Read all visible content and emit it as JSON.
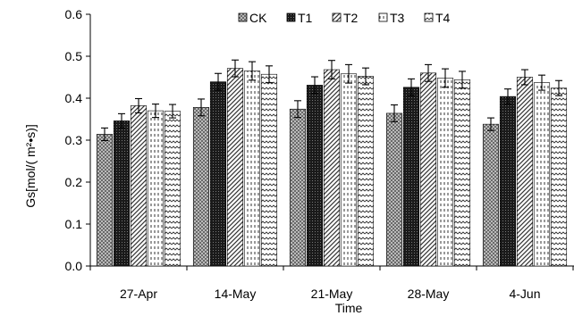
{
  "chart_data": {
    "type": "bar",
    "xlabel": "Time",
    "ylabel": "Gs[mol/( m²•s)]",
    "ylim": [
      0,
      0.6
    ],
    "yticks": [
      "0.0",
      "0.1",
      "0.2",
      "0.3",
      "0.4",
      "0.5",
      "0.6"
    ],
    "categories": [
      "27-Apr",
      "14-May",
      "21-May",
      "28-May",
      "4-Jun"
    ],
    "legend_position": "top",
    "grid": false,
    "series": [
      {
        "name": "CK",
        "values": [
          0.314,
          0.378,
          0.374,
          0.364,
          0.338
        ],
        "errors": [
          0.015,
          0.02,
          0.02,
          0.02,
          0.015
        ],
        "pattern": "crosshatch"
      },
      {
        "name": "T1",
        "values": [
          0.346,
          0.439,
          0.431,
          0.426,
          0.404
        ],
        "errors": [
          0.017,
          0.02,
          0.02,
          0.02,
          0.018
        ],
        "pattern": "dark"
      },
      {
        "name": "T2",
        "values": [
          0.382,
          0.471,
          0.468,
          0.46,
          0.45
        ],
        "errors": [
          0.017,
          0.02,
          0.022,
          0.02,
          0.018
        ],
        "pattern": "diagonal"
      },
      {
        "name": "T3",
        "values": [
          0.37,
          0.465,
          0.458,
          0.448,
          0.437
        ],
        "errors": [
          0.016,
          0.022,
          0.022,
          0.022,
          0.018
        ],
        "pattern": "vertical"
      },
      {
        "name": "T4",
        "values": [
          0.369,
          0.457,
          0.452,
          0.444,
          0.424
        ],
        "errors": [
          0.016,
          0.02,
          0.02,
          0.02,
          0.018
        ],
        "pattern": "zigzag"
      }
    ]
  }
}
